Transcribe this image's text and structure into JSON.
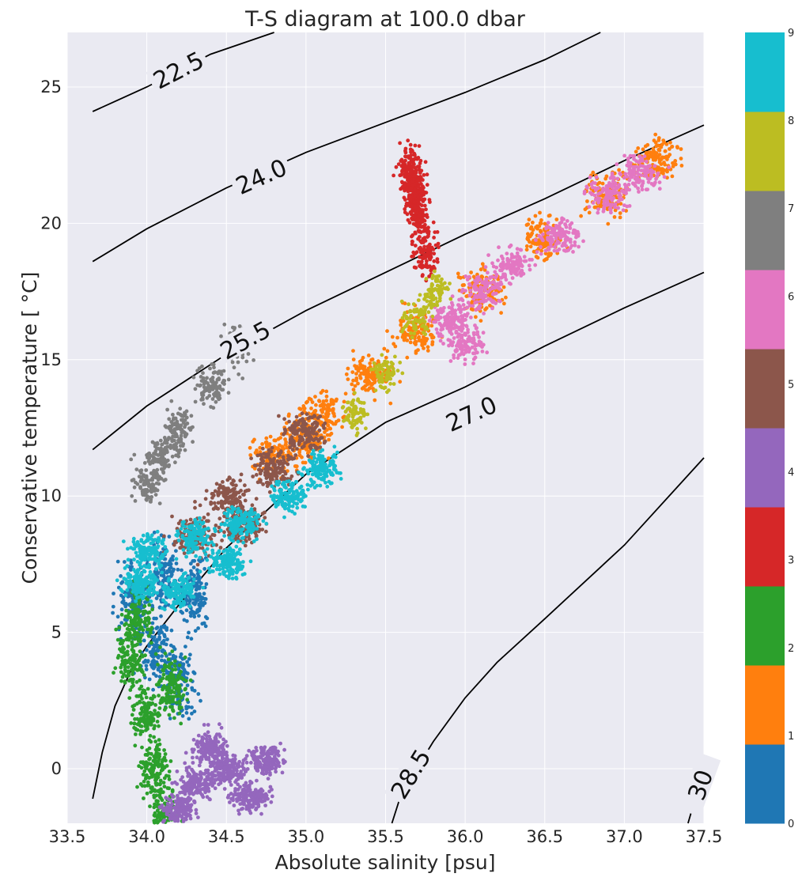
{
  "chart_data": {
    "type": "scatter",
    "title": "T-S diagram at 100.0 dbar",
    "xlabel": "Absolute salinity [psu]",
    "ylabel": "Conservative temperature [$^\\circ$C]",
    "ylabel_display": "Conservative temperature [ °C]",
    "xlim": [
      33.5,
      37.5
    ],
    "ylim": [
      -2,
      27
    ],
    "xticks": [
      "33.5",
      "34.0",
      "34.5",
      "35.0",
      "35.5",
      "36.0",
      "36.5",
      "37.0",
      "37.5"
    ],
    "xtick_values": [
      33.5,
      34.0,
      34.5,
      35.0,
      35.5,
      36.0,
      36.5,
      37.0,
      37.5
    ],
    "yticks": [
      "0",
      "5",
      "10",
      "15",
      "20",
      "25"
    ],
    "ytick_values": [
      0,
      5,
      10,
      15,
      20,
      25
    ],
    "grid": true,
    "background": "#eaeaf2",
    "colorbar": {
      "ticks": [
        "0",
        "1",
        "2",
        "3",
        "4",
        "5",
        "6",
        "7",
        "8",
        "9"
      ],
      "colors": [
        "#1f77b4",
        "#ff7f0e",
        "#2ca02c",
        "#d62728",
        "#9467bd",
        "#8c564b",
        "#e377c2",
        "#7f7f7f",
        "#bcbd22",
        "#17becf"
      ]
    },
    "density_contours": [
      {
        "label": "22.5",
        "points": [
          [
            33.66,
            24.1
          ],
          [
            34.0,
            25.0
          ],
          [
            34.4,
            26.2
          ],
          [
            34.8,
            27.0
          ]
        ],
        "label_at": [
          34.2,
          25.6
        ]
      },
      {
        "label": "24.0",
        "points": [
          [
            33.66,
            18.6
          ],
          [
            34.0,
            19.8
          ],
          [
            34.5,
            21.3
          ],
          [
            35.0,
            22.6
          ],
          [
            35.5,
            23.7
          ],
          [
            36.0,
            24.8
          ],
          [
            36.5,
            26.0
          ],
          [
            36.85,
            27.0
          ]
        ],
        "label_at": [
          34.72,
          21.7
        ]
      },
      {
        "label": "25.5",
        "points": [
          [
            33.66,
            11.7
          ],
          [
            34.0,
            13.3
          ],
          [
            34.5,
            15.2
          ],
          [
            35.0,
            16.8
          ],
          [
            35.5,
            18.2
          ],
          [
            36.0,
            19.6
          ],
          [
            36.5,
            20.9
          ],
          [
            37.0,
            22.3
          ],
          [
            37.5,
            23.6
          ]
        ],
        "label_at": [
          34.62,
          15.7
        ]
      },
      {
        "label": "27.0",
        "points": [
          [
            33.66,
            -1.1
          ],
          [
            33.72,
            0.6
          ],
          [
            33.8,
            2.3
          ],
          [
            33.9,
            3.6
          ],
          [
            34.0,
            4.5
          ],
          [
            34.2,
            6.0
          ],
          [
            34.5,
            8.1
          ],
          [
            35.0,
            10.8
          ],
          [
            35.5,
            12.7
          ],
          [
            36.0,
            14.0
          ],
          [
            36.5,
            15.5
          ],
          [
            37.0,
            16.9
          ],
          [
            37.5,
            18.2
          ]
        ],
        "label_at": [
          36.04,
          13.0
        ]
      },
      {
        "label": "28.5",
        "points": [
          [
            35.54,
            -2.0
          ],
          [
            35.6,
            -0.9
          ],
          [
            35.8,
            1.0
          ],
          [
            36.0,
            2.6
          ],
          [
            36.2,
            3.9
          ],
          [
            36.5,
            5.5
          ],
          [
            37.0,
            8.2
          ],
          [
            37.5,
            11.4
          ]
        ],
        "label_at": [
          35.66,
          -0.2
        ]
      },
      {
        "label": "30",
        "points": [
          [
            37.4,
            -2.0
          ],
          [
            37.45,
            -1.0
          ],
          [
            37.5,
            -0.2
          ]
        ],
        "label_at": [
          37.48,
          -0.6
        ]
      }
    ],
    "series": [
      {
        "cluster": "0",
        "color": "#1f77b4",
        "centers": [
          [
            33.92,
            6.2
          ],
          [
            34.05,
            4.5
          ],
          [
            34.1,
            7.0
          ],
          [
            34.2,
            3.2
          ],
          [
            34.3,
            6.5
          ]
        ],
        "spread": [
          0.1,
          1.3
        ],
        "count": 700
      },
      {
        "cluster": "1",
        "color": "#ff7f0e",
        "centers": [
          [
            35.1,
            13.0
          ],
          [
            35.4,
            14.5
          ],
          [
            35.7,
            16.0
          ],
          [
            36.1,
            17.5
          ],
          [
            36.5,
            19.5
          ],
          [
            36.9,
            21.0
          ],
          [
            37.2,
            22.3
          ],
          [
            35.0,
            12.0
          ],
          [
            34.8,
            11.5
          ]
        ],
        "spread": [
          0.13,
          0.75
        ],
        "count": 1100
      },
      {
        "cluster": "2",
        "color": "#2ca02c",
        "centers": [
          [
            33.9,
            4.0
          ],
          [
            34.0,
            2.0
          ],
          [
            34.05,
            0.0
          ],
          [
            34.1,
            -1.5
          ],
          [
            34.15,
            3.0
          ],
          [
            33.95,
            5.5
          ]
        ],
        "spread": [
          0.09,
          1.0
        ],
        "count": 750
      },
      {
        "cluster": "3",
        "color": "#d62728",
        "centers": [
          [
            35.65,
            22.0
          ],
          [
            35.7,
            20.5
          ],
          [
            35.75,
            19.0
          ],
          [
            35.68,
            21.3
          ]
        ],
        "spread": [
          0.07,
          0.9
        ],
        "count": 500
      },
      {
        "cluster": "4",
        "color": "#9467bd",
        "centers": [
          [
            34.3,
            -0.5
          ],
          [
            34.5,
            0.0
          ],
          [
            34.65,
            -1.0
          ],
          [
            34.2,
            -1.5
          ],
          [
            34.4,
            0.8
          ],
          [
            34.75,
            0.3
          ]
        ],
        "spread": [
          0.11,
          0.55
        ],
        "count": 1000
      },
      {
        "cluster": "5",
        "color": "#8c564b",
        "centers": [
          [
            34.5,
            10.0
          ],
          [
            34.8,
            11.0
          ],
          [
            35.0,
            12.3
          ],
          [
            34.6,
            9.0
          ],
          [
            34.3,
            8.5
          ]
        ],
        "spread": [
          0.13,
          0.7
        ],
        "count": 700
      },
      {
        "cluster": "6",
        "color": "#e377c2",
        "centers": [
          [
            35.9,
            16.5
          ],
          [
            36.1,
            17.5
          ],
          [
            36.3,
            18.5
          ],
          [
            36.6,
            19.5
          ],
          [
            36.9,
            21.0
          ],
          [
            37.1,
            21.8
          ],
          [
            36.0,
            15.6
          ]
        ],
        "spread": [
          0.12,
          0.6
        ],
        "count": 850
      },
      {
        "cluster": "7",
        "color": "#7f7f7f",
        "centers": [
          [
            34.1,
            11.5
          ],
          [
            34.2,
            12.5
          ],
          [
            34.4,
            14.0
          ],
          [
            34.55,
            15.5
          ],
          [
            34.0,
            10.5
          ]
        ],
        "spread": [
          0.09,
          0.75
        ],
        "count": 500
      },
      {
        "cluster": "8",
        "color": "#bcbd22",
        "centers": [
          [
            35.3,
            13.0
          ],
          [
            35.5,
            14.5
          ],
          [
            35.7,
            16.5
          ],
          [
            35.8,
            17.5
          ]
        ],
        "spread": [
          0.08,
          0.6
        ],
        "count": 300
      },
      {
        "cluster": "9",
        "color": "#17becf",
        "centers": [
          [
            34.0,
            8.0
          ],
          [
            34.3,
            8.5
          ],
          [
            34.6,
            9.0
          ],
          [
            34.9,
            10.0
          ],
          [
            34.2,
            6.5
          ],
          [
            33.95,
            6.8
          ],
          [
            34.5,
            7.6
          ],
          [
            35.1,
            11.0
          ]
        ],
        "spread": [
          0.11,
          0.6
        ],
        "count": 1100
      }
    ]
  }
}
